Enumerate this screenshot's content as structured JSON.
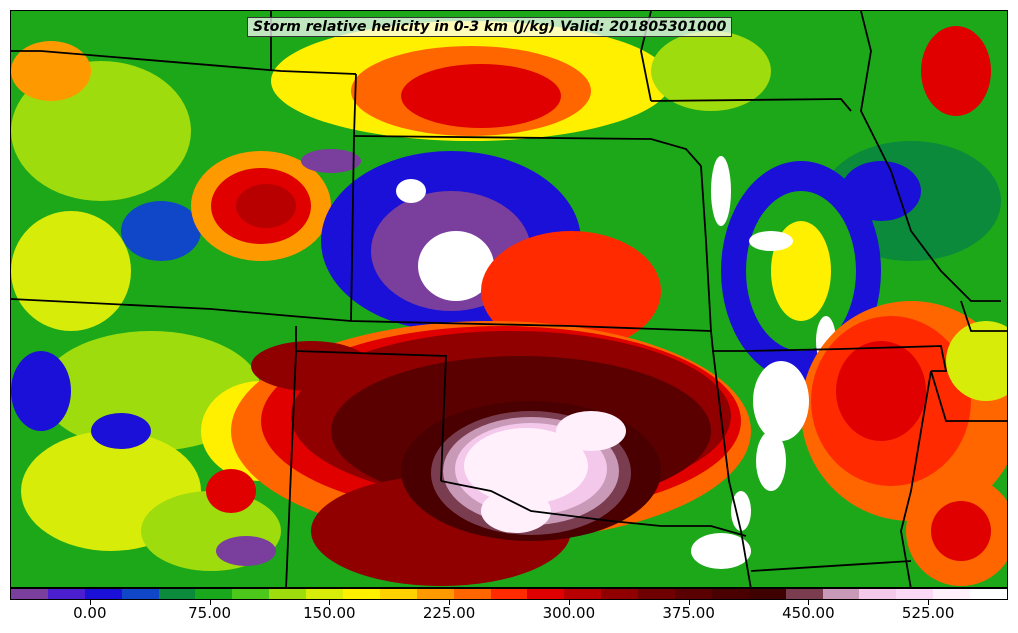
{
  "title": "Storm relative helicity in 0-3 km (J/kg) Valid: 201805301000",
  "colorbar": {
    "colors": [
      "#7a3e9d",
      "#4b1fd0",
      "#1a10d8",
      "#0f47c8",
      "#0a8a3a",
      "#19a81c",
      "#4cc81a",
      "#9fdc0e",
      "#d8ec0a",
      "#fff000",
      "#ffd200",
      "#ff9900",
      "#ff6600",
      "#ff2a00",
      "#e00000",
      "#b80000",
      "#900000",
      "#6e0000",
      "#5a0000",
      "#4a0000",
      "#3f0000",
      "#7a3d50",
      "#c99ab8",
      "#f4c8ea",
      "#fad8f6",
      "#fff0fc",
      "#ffffff"
    ],
    "ticks": [
      {
        "label": "0.00",
        "value": 0
      },
      {
        "label": "75.00",
        "value": 75
      },
      {
        "label": "150.00",
        "value": 150
      },
      {
        "label": "225.00",
        "value": 225
      },
      {
        "label": "300.00",
        "value": 300
      },
      {
        "label": "375.00",
        "value": 375
      },
      {
        "label": "450.00",
        "value": 450
      },
      {
        "label": "525.00",
        "value": 525
      }
    ],
    "min": -50,
    "max": 575
  },
  "map": {
    "background_color": "#1da81a",
    "regions": [
      {
        "name": "central-high-helicity-core",
        "color": "#4a0000"
      },
      {
        "name": "oklahoma-white-maximum",
        "color": "#fff0fc"
      },
      {
        "name": "nebraska-negative-region",
        "color": "#1a10d8"
      },
      {
        "name": "eastern-red-region",
        "color": "#ff2a00"
      }
    ]
  }
}
